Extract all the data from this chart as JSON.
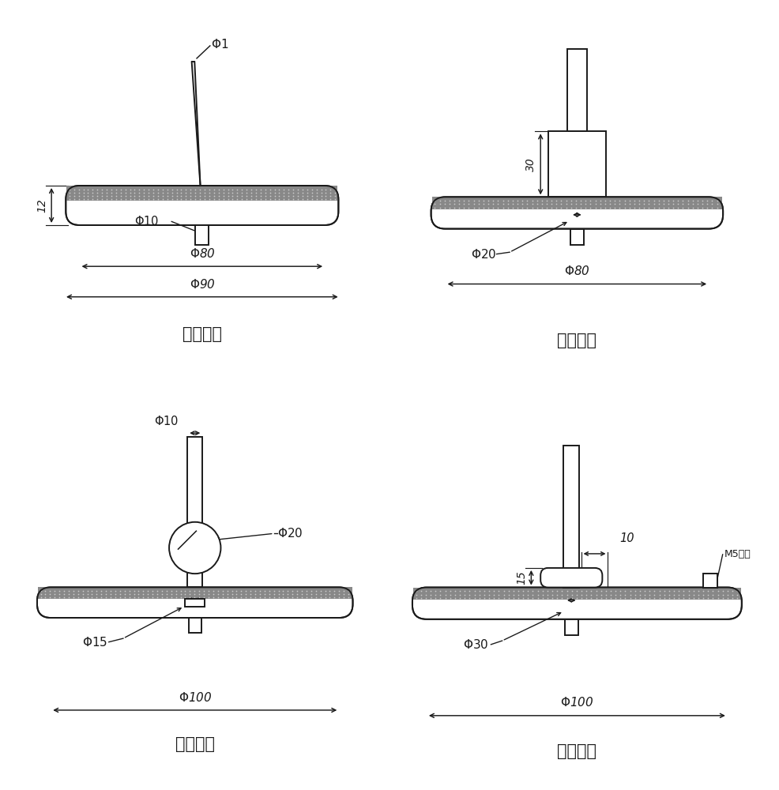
{
  "background_color": "#ffffff",
  "line_color": "#1a1a1a",
  "labels": {
    "top_left": "尖端放电",
    "top_right": "沿面放电",
    "bottom_left": "气泡放电",
    "bottom_right": "悬浮放电"
  },
  "m5_label": "M5螺母"
}
